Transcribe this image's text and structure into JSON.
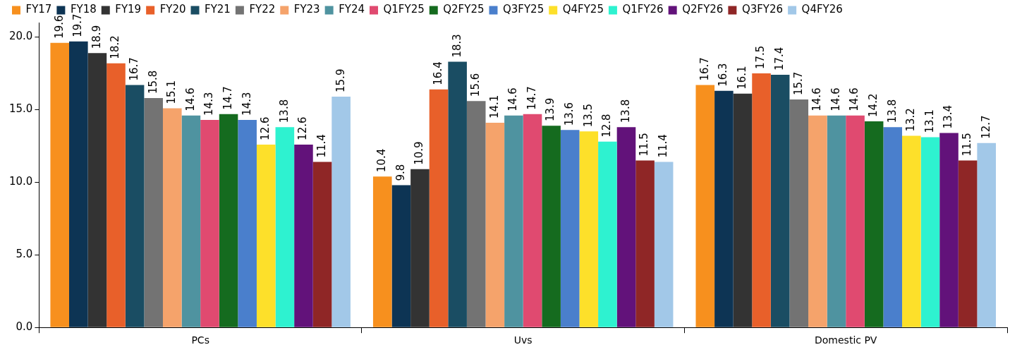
{
  "chart_data": {
    "type": "bar",
    "categories": [
      "PCs",
      "Uvs",
      "Domestic PV"
    ],
    "series": [
      {
        "name": "FY17",
        "color": "#f7901e",
        "values": [
          19.6,
          10.4,
          16.7
        ]
      },
      {
        "name": "FY18",
        "color": "#0d3454",
        "values": [
          19.7,
          9.8,
          16.3
        ]
      },
      {
        "name": "FY19",
        "color": "#333333",
        "values": [
          18.9,
          10.9,
          16.1
        ]
      },
      {
        "name": "FY20",
        "color": "#e8602a",
        "values": [
          18.2,
          16.4,
          17.5
        ]
      },
      {
        "name": "FY21",
        "color": "#1a4d63",
        "values": [
          16.7,
          18.3,
          17.4
        ]
      },
      {
        "name": "FY22",
        "color": "#737373",
        "values": [
          15.8,
          15.6,
          15.7
        ]
      },
      {
        "name": "FY23",
        "color": "#f5a36b",
        "values": [
          15.1,
          14.1,
          14.6
        ]
      },
      {
        "name": "FY24",
        "color": "#4f93a0",
        "values": [
          14.6,
          14.6,
          14.6
        ]
      },
      {
        "name": "Q1FY25",
        "color": "#e04a70",
        "values": [
          14.3,
          14.7,
          14.6
        ]
      },
      {
        "name": "Q2FY25",
        "color": "#156b1f",
        "values": [
          14.7,
          13.9,
          14.2
        ]
      },
      {
        "name": "Q3FY25",
        "color": "#4a7fcc",
        "values": [
          14.3,
          13.6,
          13.8
        ]
      },
      {
        "name": "Q4FY25",
        "color": "#fde02a",
        "values": [
          12.6,
          13.5,
          13.2
        ]
      },
      {
        "name": "Q1FY26",
        "color": "#2ef2d0",
        "values": [
          13.8,
          12.8,
          13.1
        ]
      },
      {
        "name": "Q2FY26",
        "color": "#62127a",
        "values": [
          12.6,
          13.8,
          13.4
        ]
      },
      {
        "name": "Q3FY26",
        "color": "#8f2626",
        "values": [
          11.4,
          11.5,
          11.5
        ]
      },
      {
        "name": "Q4FY26",
        "color": "#a2c8e8",
        "values": [
          15.9,
          11.4,
          12.7
        ]
      }
    ],
    "ylim": [
      0,
      21
    ],
    "yticks": [
      {
        "value": 0,
        "label": "0.0"
      },
      {
        "value": 5,
        "label": "5.0"
      },
      {
        "value": 10,
        "label": "10.0"
      },
      {
        "value": 15,
        "label": "15.0"
      },
      {
        "value": 20,
        "label": "20.0"
      }
    ],
    "data_labels": true,
    "grid": false,
    "legend": "top"
  }
}
